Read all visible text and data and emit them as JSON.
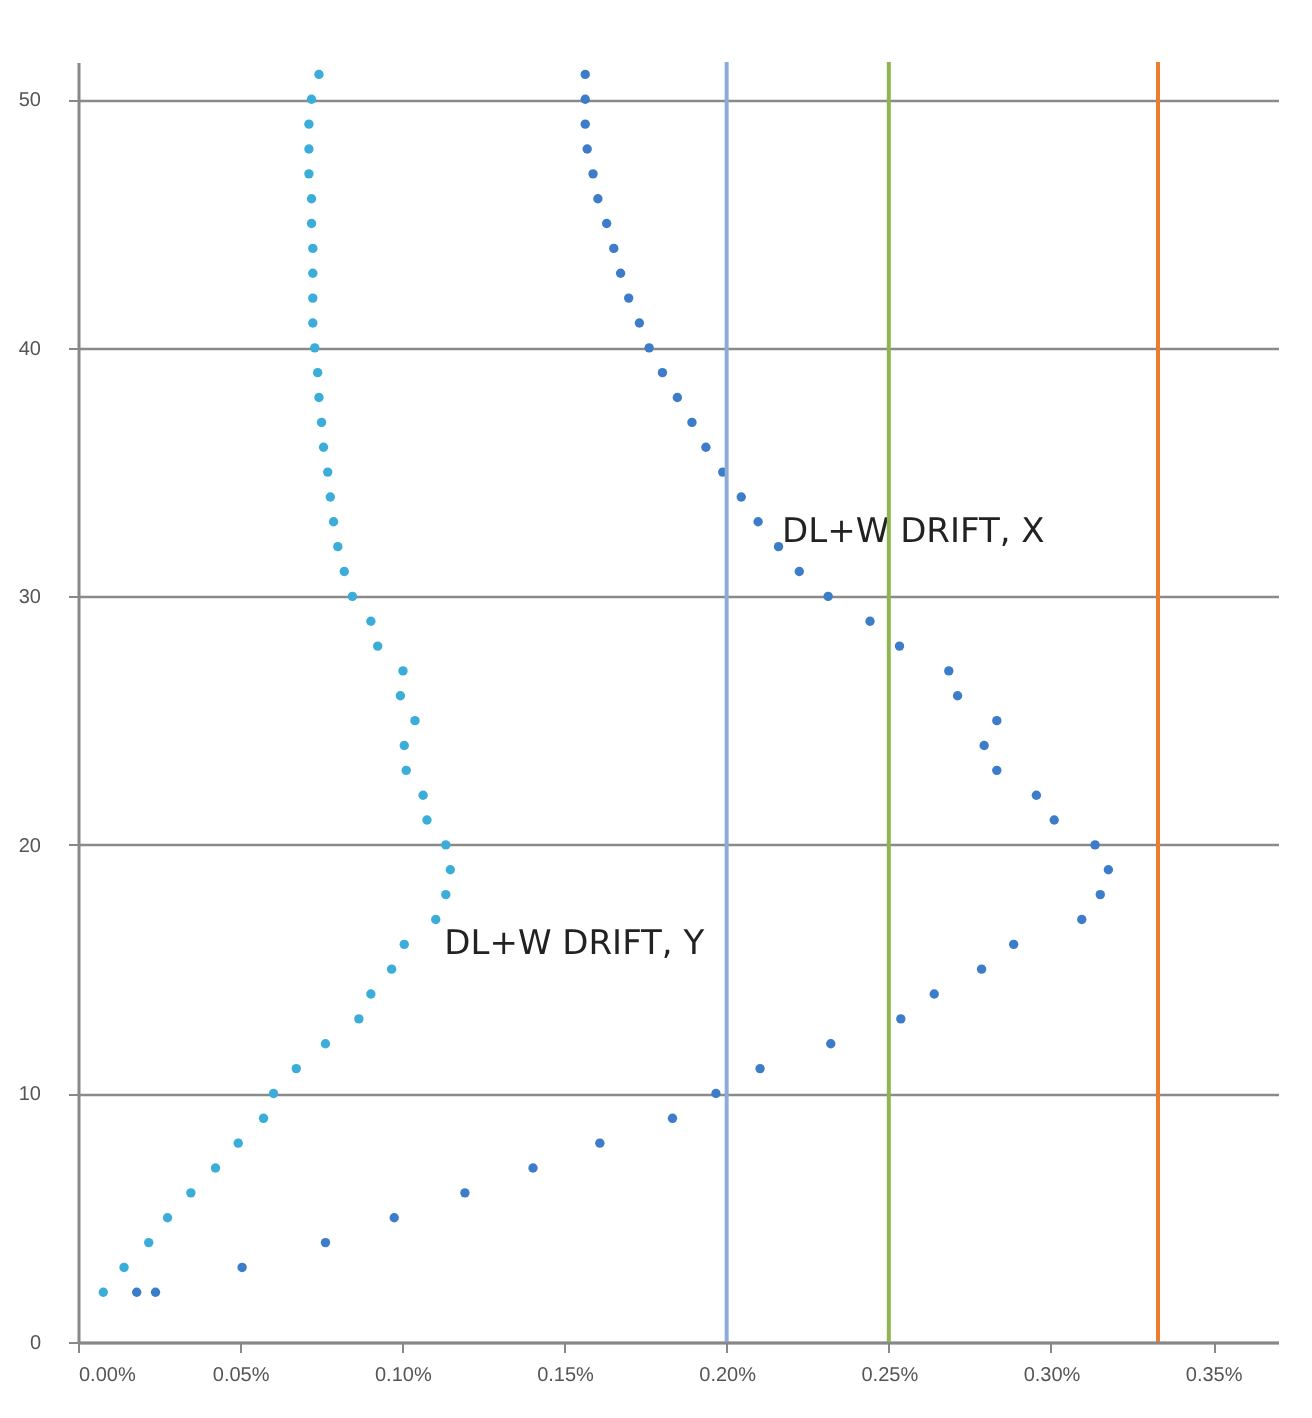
{
  "chart_data": {
    "type": "scatter",
    "xlim": [
      0,
      0.37
    ],
    "ylim": [
      0,
      51.5
    ],
    "xticks": [
      {
        "value": 0,
        "label": "0.00%"
      },
      {
        "value": 0.05,
        "label": "0.05%"
      },
      {
        "value": 0.1,
        "label": "0.10%"
      },
      {
        "value": 0.15,
        "label": "0.15%"
      },
      {
        "value": 0.2,
        "label": "0.20%"
      },
      {
        "value": 0.25,
        "label": "0.25%"
      },
      {
        "value": 0.3,
        "label": "0.30%"
      },
      {
        "value": 0.35,
        "label": "0.35%"
      }
    ],
    "yticks": [
      0,
      10,
      20,
      30,
      40,
      50
    ],
    "grid": "y",
    "marker": "circle",
    "series": [
      {
        "name": "DL+W DRIFT, X",
        "color": "#3d7cc9",
        "x": [
          0.0181,
          0.0239,
          0.0506,
          0.0763,
          0.0975,
          0.1193,
          0.1403,
          0.1609,
          0.1833,
          0.1967,
          0.2103,
          0.2321,
          0.2537,
          0.264,
          0.2786,
          0.2885,
          0.3095,
          0.3152,
          0.3177,
          0.3136,
          0.301,
          0.2955,
          0.2833,
          0.2794,
          0.2833,
          0.2712,
          0.2685,
          0.2533,
          0.2442,
          0.2313,
          0.2224,
          0.216,
          0.2097,
          0.2045,
          0.1988,
          0.1936,
          0.1893,
          0.1848,
          0.1802,
          0.1761,
          0.1731,
          0.1698,
          0.1673,
          0.1652,
          0.163,
          0.1603,
          0.1588,
          0.157,
          0.1564,
          0.1564,
          0.1564
        ],
        "values": [
          2,
          2,
          3,
          4,
          5,
          6,
          7,
          8,
          9,
          10,
          11,
          12,
          13,
          14,
          15,
          16,
          17,
          18,
          19,
          20,
          21,
          22,
          23,
          24,
          25,
          26,
          27,
          28,
          29,
          30,
          31,
          32,
          33,
          34,
          35,
          36,
          37,
          38,
          39,
          40,
          41,
          42,
          43,
          44,
          45,
          46,
          47,
          48,
          49,
          50,
          51
        ]
      },
      {
        "name": "DL+W DRIFT, Y",
        "color": "#3aaed8",
        "x": [
          0.0078,
          0.0142,
          0.0218,
          0.0276,
          0.0348,
          0.0424,
          0.0494,
          0.0572,
          0.0603,
          0.0673,
          0.0763,
          0.0866,
          0.0903,
          0.0967,
          0.1006,
          0.1103,
          0.1134,
          0.1148,
          0.1134,
          0.1076,
          0.1064,
          0.1012,
          0.1006,
          0.1039,
          0.0994,
          0.1002,
          0.0924,
          0.0903,
          0.0846,
          0.0821,
          0.0801,
          0.0788,
          0.0778,
          0.077,
          0.0757,
          0.0751,
          0.0743,
          0.0739,
          0.073,
          0.0724,
          0.0724,
          0.0724,
          0.0724,
          0.072,
          0.072,
          0.0712,
          0.0712,
          0.0712,
          0.072,
          0.0743
        ],
        "values": [
          2,
          3,
          4,
          5,
          6,
          7,
          8,
          9,
          10,
          11,
          12,
          13,
          14,
          15,
          16,
          17,
          18,
          19,
          20,
          21,
          22,
          23,
          24,
          25,
          26,
          27,
          28,
          29,
          30,
          31,
          32,
          33,
          34,
          35,
          36,
          37,
          38,
          39,
          40,
          41,
          42,
          43,
          44,
          45,
          46,
          47,
          48,
          49,
          50,
          51
        ]
      }
    ],
    "ref_lines": [
      {
        "axis": "x",
        "value": 0.2,
        "color": "#8eaadb"
      },
      {
        "axis": "x",
        "value": 0.25,
        "color": "#8fb553"
      },
      {
        "axis": "x",
        "value": 0.333,
        "color": "#ec7c30"
      }
    ]
  }
}
